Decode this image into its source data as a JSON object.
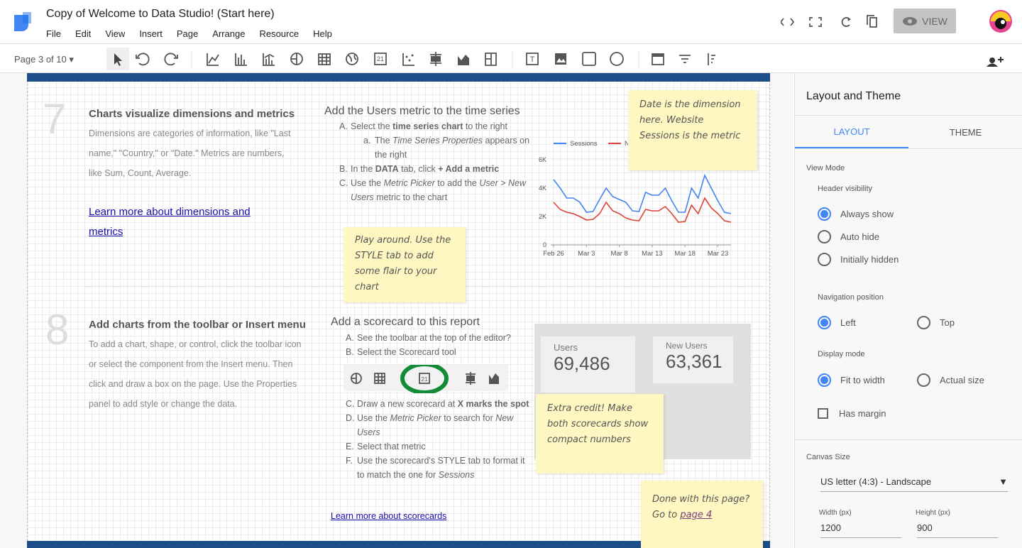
{
  "header": {
    "title": "Copy of Welcome to Data Studio! (Start here)",
    "menu": [
      "File",
      "Edit",
      "View",
      "Insert",
      "Page",
      "Arrange",
      "Resource",
      "Help"
    ],
    "view_button": "VIEW"
  },
  "toolbar": {
    "page_selector": "Page 3 of 10",
    "scorecard_icon": "21"
  },
  "sections": [
    {
      "number": "7",
      "heading": "Charts visualize dimensions and metrics",
      "body": "Dimensions are categories of information, like \"Last name,\" \"Country,\" or \"Date.\" Metrics are numbers, like Sum, Count, Average.",
      "link": "Learn more about dimensions and metrics",
      "task_title": "Add the Users metric to the time series",
      "steps": [
        {
          "marker": "A.",
          "parts": [
            "Select the ",
            "time series chart",
            " to the right"
          ],
          "bold": [
            1
          ],
          "italic": [],
          "substeps": [
            {
              "marker": "a.",
              "parts": [
                "The ",
                "Time Series Properties",
                " appears on the right"
              ],
              "bold": [],
              "italic": [
                1
              ]
            }
          ]
        },
        {
          "marker": "B.",
          "parts": [
            "In the ",
            "DATA",
            " tab, click ",
            "+ Add a metric"
          ],
          "bold": [
            1,
            3
          ],
          "italic": []
        },
        {
          "marker": "C.",
          "parts": [
            "Use the ",
            "Metric Picker",
            " to add the ",
            "User > New Users",
            " metric to the chart"
          ],
          "bold": [],
          "italic": [
            1,
            3
          ]
        }
      ]
    },
    {
      "number": "8",
      "heading": "Add charts from the toolbar or Insert menu",
      "body": "To add a chart, shape, or control, click the toolbar icon or select the component from the Insert menu. Then click and draw a box on the page. Use the Properties panel to add style or change the data.",
      "link": "Learn more about scorecards",
      "task_title": "Add a scorecard to this report",
      "steps": [
        {
          "marker": "A.",
          "parts": [
            "See the toolbar at the top of the editor?"
          ],
          "bold": [],
          "italic": []
        },
        {
          "marker": "B.",
          "parts": [
            "Select the Scorecard tool"
          ],
          "bold": [],
          "italic": []
        },
        {
          "marker": "C.",
          "parts": [
            "Draw a new scorecard at ",
            "X marks the spot"
          ],
          "bold": [
            1
          ],
          "italic": []
        },
        {
          "marker": "D.",
          "parts": [
            "Use the ",
            "Metric Picker",
            " to search for ",
            "New Users"
          ],
          "bold": [],
          "italic": [
            1,
            3
          ]
        },
        {
          "marker": "E.",
          "parts": [
            "Select that metric"
          ],
          "bold": [],
          "italic": []
        },
        {
          "marker": "F.",
          "parts": [
            "Use the scorecard's STYLE tab to format it to match the one for ",
            "Sessions"
          ],
          "bold": [],
          "italic": [
            1
          ]
        }
      ]
    }
  ],
  "sticky_notes": [
    "Date is the dimension here. Website Sessions is the metric",
    "Play around. Use the STYLE tab to add some flair to your chart",
    "Extra credit! Make both scorecards show compact numbers"
  ],
  "finish_note": {
    "text": "Done with this page? Go to",
    "link": "page 4"
  },
  "scorecards": [
    {
      "label": "Users",
      "value": "69,486"
    },
    {
      "label": "New Users",
      "value": "63,361"
    }
  ],
  "panel": {
    "title": "Layout and Theme",
    "tabs": [
      "LAYOUT",
      "THEME"
    ],
    "view_mode": "View Mode",
    "groups": [
      {
        "label": "Header visibility",
        "options": [
          "Always show",
          "Auto hide",
          "Initially hidden"
        ],
        "selected": 0
      },
      {
        "label": "Navigation position",
        "options": [
          "Left",
          "Top"
        ],
        "selected": 0
      },
      {
        "label": "Display mode",
        "options": [
          "Fit to width",
          "Actual size"
        ],
        "selected": 0
      }
    ],
    "has_margin": "Has margin",
    "canvas_size": "Canvas Size",
    "size_preset": "US letter (4:3) - Landscape",
    "width_label": "Width (px)",
    "width": "1200",
    "height_label": "Height (px)",
    "height": "900"
  },
  "chart_data": {
    "type": "line",
    "categories": [
      "Feb 26",
      null,
      null,
      null,
      null,
      "Mar 3",
      null,
      null,
      null,
      null,
      "Mar 8",
      null,
      null,
      null,
      null,
      "Mar 13",
      null,
      null,
      null,
      null,
      "Mar 18",
      null,
      null,
      null,
      null,
      "Mar 23",
      null,
      null
    ],
    "series": [
      {
        "name": "Sessions",
        "color": "#4285f4",
        "values": [
          4600,
          4000,
          3300,
          3300,
          3000,
          2300,
          2350,
          3200,
          4000,
          3400,
          3200,
          3000,
          2400,
          2350,
          3700,
          3500,
          3500,
          4000,
          3100,
          2300,
          2300,
          4000,
          3300,
          4900,
          4000,
          3100,
          2300,
          2200
        ]
      },
      {
        "name": "New Users",
        "color": "#db4437",
        "values": [
          3000,
          2500,
          2300,
          2200,
          2000,
          1750,
          1800,
          2200,
          3000,
          2400,
          2200,
          1900,
          1750,
          1700,
          2500,
          2400,
          2400,
          2700,
          2200,
          1600,
          1650,
          2800,
          2200,
          3300,
          2600,
          2200,
          1700,
          1600
        ]
      }
    ],
    "ylim": [
      0,
      6000
    ],
    "yticks": [
      0,
      {
        "value": 2000,
        "label": "2K"
      },
      {
        "value": 4000,
        "label": "4K"
      },
      {
        "value": 6000,
        "label": "6K"
      }
    ],
    "grid": true
  }
}
